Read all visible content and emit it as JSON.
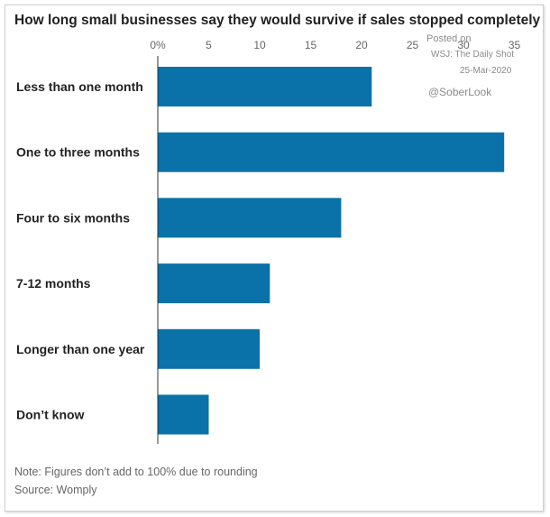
{
  "chart_data": {
    "type": "bar",
    "orientation": "horizontal",
    "title": "How long small businesses say they would survive if sales stopped completely",
    "categories": [
      "Less than one month",
      "One to three months",
      "Four to six months",
      "7-12 months",
      "Longer than one year",
      "Don’t know"
    ],
    "values": [
      21,
      34,
      18,
      11,
      10,
      5
    ],
    "x_ticks": [
      "0%",
      "5",
      "10",
      "15",
      "20",
      "25",
      "30",
      "35"
    ],
    "x_tick_values": [
      0,
      5,
      10,
      15,
      20,
      25,
      30,
      35
    ],
    "xlim": [
      0,
      35
    ],
    "xaxis_position": "top",
    "bar_color": "#0a72a8",
    "grid": false
  },
  "watermark": {
    "posted": "Posted on",
    "source": "WSJ: The Daily Shot",
    "date": "25-Mar-2020",
    "handle": "@SoberLook"
  },
  "notes": {
    "note": "Note: Figures don’t add to 100% due to rounding",
    "source": "Source: Womply"
  }
}
